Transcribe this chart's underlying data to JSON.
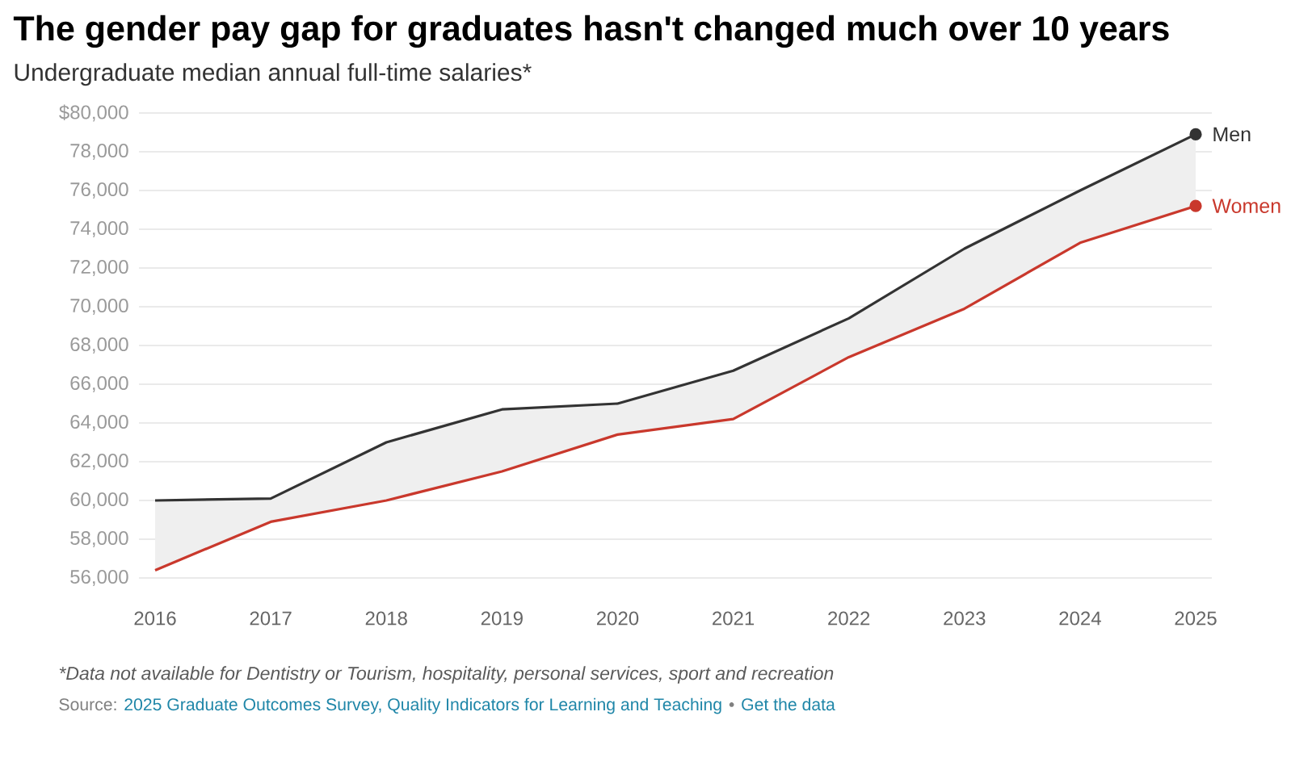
{
  "chart_data": {
    "type": "line",
    "title": "The gender pay gap for graduates hasn't changed much over 10 years",
    "subtitle": "Undergraduate median annual full-time salaries*",
    "categories": [
      "2016",
      "2017",
      "2018",
      "2019",
      "2020",
      "2021",
      "2022",
      "2023",
      "2024",
      "2025"
    ],
    "series": [
      {
        "name": "Men",
        "color": "#333333",
        "values": [
          60000,
          60100,
          63000,
          64700,
          65000,
          66700,
          69400,
          73000,
          76000,
          78900
        ],
        "lower": [
          56400,
          58900,
          60000,
          61500,
          63400,
          64200,
          67400,
          69900,
          73300,
          75200
        ],
        "upper": [
          60000,
          60100,
          63000,
          64700,
          65000,
          66700,
          69400,
          73000,
          76000,
          78900
        ]
      },
      {
        "name": "Women",
        "color": "#c9382c",
        "values": [
          56400,
          58900,
          60000,
          61500,
          63400,
          64200,
          67400,
          69900,
          73300,
          75200
        ]
      }
    ],
    "ylim": [
      56000,
      80000
    ],
    "yticks": [
      {
        "value": 56000,
        "label": "56,000"
      },
      {
        "value": 58000,
        "label": "58,000"
      },
      {
        "value": 60000,
        "label": "60,000"
      },
      {
        "value": 62000,
        "label": "62,000"
      },
      {
        "value": 64000,
        "label": "64,000"
      },
      {
        "value": 66000,
        "label": "66,000"
      },
      {
        "value": 68000,
        "label": "68,000"
      },
      {
        "value": 70000,
        "label": "70,000"
      },
      {
        "value": 72000,
        "label": "72,000"
      },
      {
        "value": 74000,
        "label": "74,000"
      },
      {
        "value": 76000,
        "label": "76,000"
      },
      {
        "value": 78000,
        "label": "78,000"
      },
      {
        "value": 80000,
        "label": "$80,000"
      }
    ],
    "grid": "y",
    "annotations": [
      "*Data not available for Dentistry or Tourism, hospitality, personal services, sport and recreation",
      "Source:",
      "2025 Graduate Outcomes Survey, Quality Indicators for Learning and Teaching",
      "•",
      "Get the data"
    ]
  }
}
